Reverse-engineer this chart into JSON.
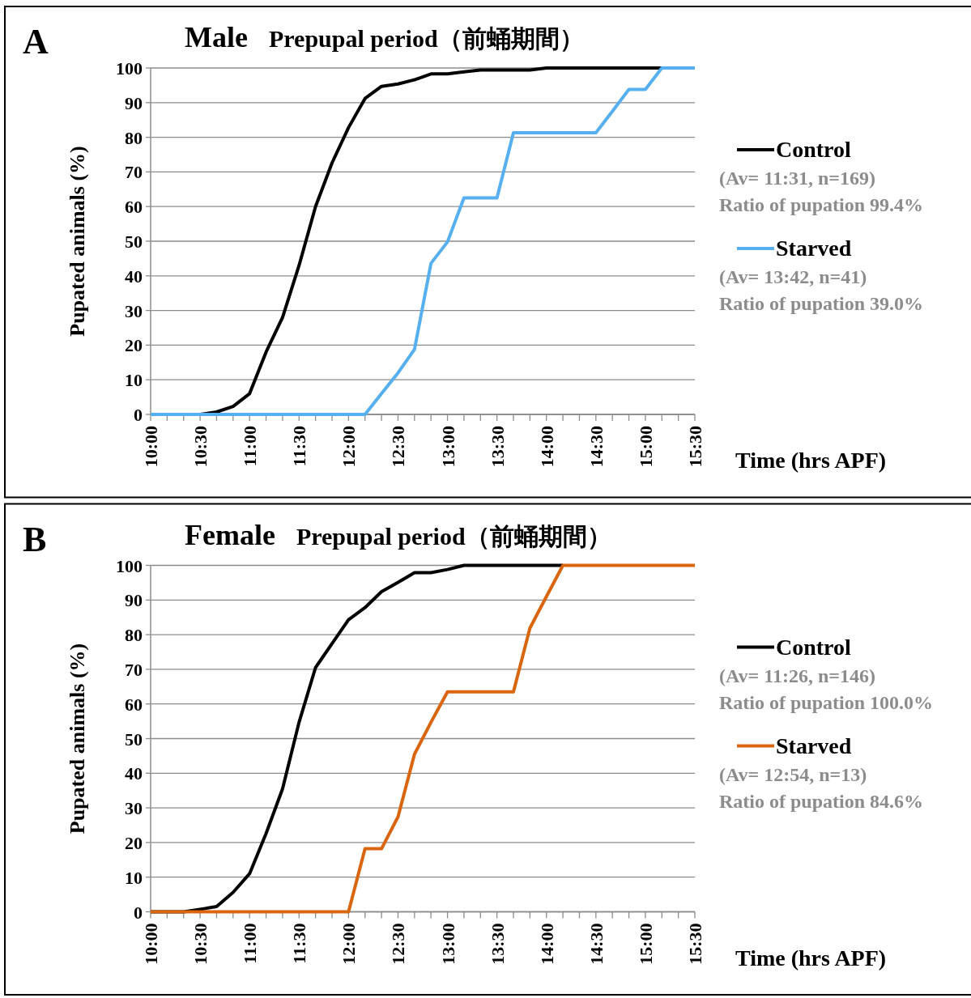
{
  "chart_data": [
    {
      "type": "line",
      "title": "Male",
      "subtitle": "Prepupal period（前蛹期間）",
      "xlabel": "Time (hrs APF)",
      "ylabel": "Pupated animals (%)",
      "annotations": [
        "A",
        "(Av=  11:31, n=169)",
        "Ratio of pupation 99.4%",
        "(Av=  13:42, n=41)",
        "Ratio of pupation 39.0%"
      ],
      "x": [
        10,
        10.1667,
        10.3333,
        10.5,
        10.6667,
        10.8333,
        11,
        11.1667,
        11.3333,
        11.5,
        11.6667,
        11.8333,
        12,
        12.1667,
        12.3333,
        12.5,
        12.6667,
        12.8333,
        13,
        13.1667,
        13.3333,
        13.5,
        13.6667,
        13.8333,
        14,
        14.1667,
        14.3333,
        14.5,
        14.6667,
        14.8333,
        15,
        15.1667,
        15.3333,
        15.5
      ],
      "series": [
        {
          "name": "Control",
          "color": "#000000",
          "values": [
            0,
            0,
            0,
            0,
            0.7,
            2.3,
            6,
            18,
            28,
            43,
            60,
            72.6,
            82.8,
            91.2,
            94.7,
            95.4,
            96.6,
            98.3,
            98.3,
            98.9,
            99.4,
            99.4,
            99.4,
            99.4,
            100,
            100,
            100,
            100,
            100,
            100,
            100,
            100,
            null,
            null
          ]
        },
        {
          "name": "Starved",
          "color": "#56b0f0",
          "values": [
            0,
            0,
            0,
            0,
            0,
            0,
            0,
            0,
            0,
            0,
            0,
            0,
            0,
            0,
            6,
            12,
            18.8,
            43.6,
            49.8,
            62.5,
            62.5,
            62.5,
            81.3,
            81.3,
            81.3,
            81.3,
            81.3,
            81.3,
            87.5,
            93.8,
            93.8,
            100,
            100,
            100
          ]
        }
      ],
      "xlim": [
        10,
        15.5
      ],
      "ylim": [
        0,
        100
      ],
      "xticks": [
        {
          "value": 10,
          "label": "10:00"
        },
        {
          "value": 10.1667,
          "label": null
        },
        {
          "value": 10.3333,
          "label": null
        },
        {
          "value": 10.5,
          "label": "10:30"
        },
        {
          "value": 10.6667,
          "label": null
        },
        {
          "value": 10.8333,
          "label": null
        },
        {
          "value": 11,
          "label": "11:00"
        },
        {
          "value": 11.1667,
          "label": null
        },
        {
          "value": 11.3333,
          "label": null
        },
        {
          "value": 11.5,
          "label": "11:30"
        },
        {
          "value": 11.6667,
          "label": null
        },
        {
          "value": 11.8333,
          "label": null
        },
        {
          "value": 12,
          "label": "12:00"
        },
        {
          "value": 12.1667,
          "label": null
        },
        {
          "value": 12.3333,
          "label": null
        },
        {
          "value": 12.5,
          "label": "12:30"
        },
        {
          "value": 12.6667,
          "label": null
        },
        {
          "value": 12.8333,
          "label": null
        },
        {
          "value": 13,
          "label": "13:00"
        },
        {
          "value": 13.1667,
          "label": null
        },
        {
          "value": 13.3333,
          "label": null
        },
        {
          "value": 13.5,
          "label": "13:30"
        },
        {
          "value": 13.6667,
          "label": null
        },
        {
          "value": 13.8333,
          "label": null
        },
        {
          "value": 14,
          "label": "14:00"
        },
        {
          "value": 14.1667,
          "label": null
        },
        {
          "value": 14.3333,
          "label": null
        },
        {
          "value": 14.5,
          "label": "14:30"
        },
        {
          "value": 14.6667,
          "label": null
        },
        {
          "value": 14.8333,
          "label": null
        },
        {
          "value": 15,
          "label": "15:00"
        },
        {
          "value": 15.1667,
          "label": null
        },
        {
          "value": 15.3333,
          "label": null
        },
        {
          "value": 15.5,
          "label": "15:30"
        }
      ],
      "yticks": [
        0,
        10,
        20,
        30,
        40,
        50,
        60,
        70,
        80,
        90,
        100
      ],
      "grid": "y",
      "legend": "right",
      "marker": "none",
      "line_style": "solid"
    },
    {
      "type": "line",
      "title": "Female",
      "subtitle": "Prepupal period（前蛹期間）",
      "xlabel": "Time (hrs APF)",
      "ylabel": "Pupated animals (%)",
      "annotations": [
        "B",
        "(Av=  11:26, n=146)",
        "Ratio of pupation 100.0%",
        "(Av=  12:54, n=13)",
        "Ratio of pupation 84.6%"
      ],
      "x": [
        10,
        10.1667,
        10.3333,
        10.5,
        10.6667,
        10.8333,
        11,
        11.1667,
        11.3333,
        11.5,
        11.6667,
        11.8333,
        12,
        12.1667,
        12.3333,
        12.5,
        12.6667,
        12.8333,
        13,
        13.1667,
        13.3333,
        13.5,
        13.6667,
        13.8333,
        14,
        14.1667,
        14.3333,
        14.5,
        14.6667,
        14.8333,
        15,
        15.1667,
        15.3333,
        15.5
      ],
      "series": [
        {
          "name": "Control",
          "color": "#000000",
          "values": [
            0,
            0,
            0,
            0.7,
            1.5,
            5.6,
            11,
            22.6,
            35.5,
            54.7,
            70.5,
            77.4,
            84.3,
            87.8,
            92.4,
            95.1,
            97.9,
            97.9,
            98.8,
            100,
            100,
            100,
            100,
            100,
            100,
            100,
            null,
            null,
            null,
            null,
            null,
            null,
            null,
            null
          ]
        },
        {
          "name": "Starved",
          "color": "#d9650e",
          "values": [
            0,
            0,
            0,
            0,
            0,
            0,
            0,
            0,
            0,
            0,
            0,
            0,
            0,
            18.2,
            18.2,
            27.4,
            45.5,
            54.7,
            63.5,
            63.5,
            63.5,
            63.5,
            63.5,
            81.9,
            91,
            100,
            100,
            100,
            100,
            100,
            100,
            100,
            100,
            100
          ]
        }
      ],
      "xlim": [
        10,
        15.5
      ],
      "ylim": [
        0,
        100
      ],
      "xticks": [
        {
          "value": 10,
          "label": "10:00"
        },
        {
          "value": 10.1667,
          "label": null
        },
        {
          "value": 10.3333,
          "label": null
        },
        {
          "value": 10.5,
          "label": "10:30"
        },
        {
          "value": 10.6667,
          "label": null
        },
        {
          "value": 10.8333,
          "label": null
        },
        {
          "value": 11,
          "label": "11:00"
        },
        {
          "value": 11.1667,
          "label": null
        },
        {
          "value": 11.3333,
          "label": null
        },
        {
          "value": 11.5,
          "label": "11:30"
        },
        {
          "value": 11.6667,
          "label": null
        },
        {
          "value": 11.8333,
          "label": null
        },
        {
          "value": 12,
          "label": "12:00"
        },
        {
          "value": 12.1667,
          "label": null
        },
        {
          "value": 12.3333,
          "label": null
        },
        {
          "value": 12.5,
          "label": "12:30"
        },
        {
          "value": 12.6667,
          "label": null
        },
        {
          "value": 12.8333,
          "label": null
        },
        {
          "value": 13,
          "label": "13:00"
        },
        {
          "value": 13.1667,
          "label": null
        },
        {
          "value": 13.3333,
          "label": null
        },
        {
          "value": 13.5,
          "label": "13:30"
        },
        {
          "value": 13.6667,
          "label": null
        },
        {
          "value": 13.8333,
          "label": null
        },
        {
          "value": 14,
          "label": "14:00"
        },
        {
          "value": 14.1667,
          "label": null
        },
        {
          "value": 14.3333,
          "label": null
        },
        {
          "value": 14.5,
          "label": "14:30"
        },
        {
          "value": 14.6667,
          "label": null
        },
        {
          "value": 14.8333,
          "label": null
        },
        {
          "value": 15,
          "label": "15:00"
        },
        {
          "value": 15.1667,
          "label": null
        },
        {
          "value": 15.3333,
          "label": null
        },
        {
          "value": 15.5,
          "label": "15:30"
        }
      ],
      "yticks": [
        0,
        10,
        20,
        30,
        40,
        50,
        60,
        70,
        80,
        90,
        100
      ],
      "grid": "y",
      "legend": "right",
      "marker": "none",
      "line_style": "solid"
    }
  ]
}
